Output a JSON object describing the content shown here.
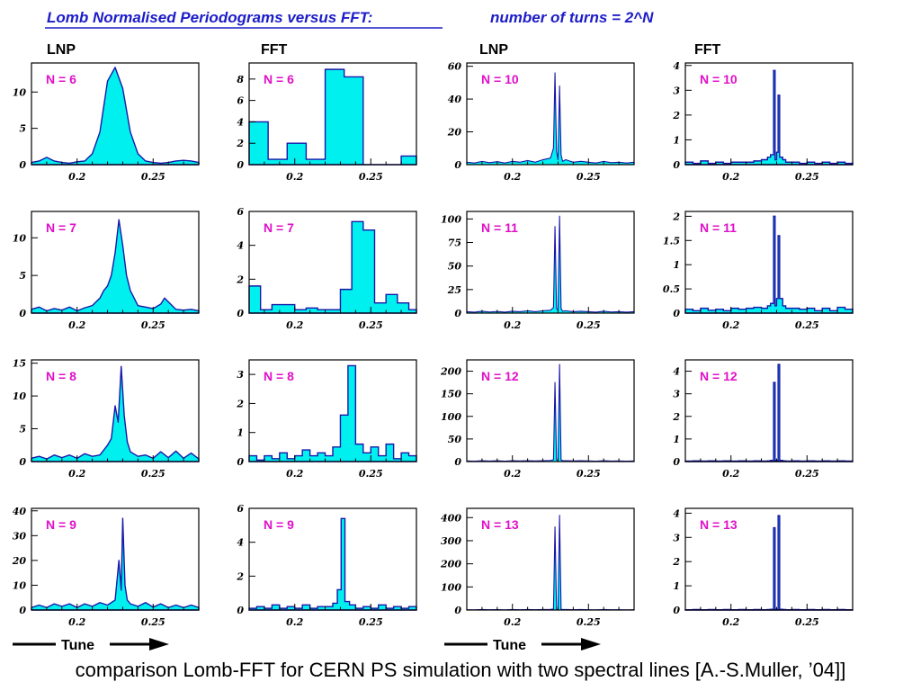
{
  "title": {
    "main": "Lomb Normalised Periodograms versus FFT:",
    "turns": "number of turns = 2^N"
  },
  "column_headers": [
    "LNP",
    "FFT",
    "LNP",
    "FFT"
  ],
  "tune_labels": [
    "Tune",
    "Tune"
  ],
  "caption": "comparison Lomb-FFT for CERN PS simulation with two spectral lines [A.-S.Muller, ’04]]",
  "colors": {
    "title": "#1c1cc8",
    "label": "#e010c8",
    "fill": "#00f0f0",
    "line": "#1818a8"
  },
  "chart_data": [
    {
      "type": "area",
      "method": "LNP",
      "label": "N = 6",
      "xlim": [
        0.17,
        0.28
      ],
      "ylim": [
        0,
        14
      ],
      "xticks": [
        "0.2",
        "0.25"
      ],
      "yticks": [
        "0",
        "5",
        "10"
      ],
      "x": [
        0.17,
        0.175,
        0.18,
        0.185,
        0.19,
        0.195,
        0.2,
        0.205,
        0.21,
        0.215,
        0.22,
        0.225,
        0.23,
        0.235,
        0.24,
        0.245,
        0.25,
        0.255,
        0.26,
        0.265,
        0.27,
        0.275,
        0.28
      ],
      "y": [
        0.3,
        0.5,
        1.0,
        0.5,
        0.3,
        0.2,
        0.4,
        0.5,
        1.5,
        4.5,
        11.5,
        13.4,
        10.5,
        4.5,
        1.5,
        0.5,
        0.3,
        0.2,
        0.3,
        0.5,
        0.6,
        0.5,
        0.3
      ]
    },
    {
      "type": "histogram",
      "method": "FFT",
      "label": "N = 6",
      "xlim": [
        0.17,
        0.28
      ],
      "ylim": [
        0,
        9.5
      ],
      "xticks": [
        "0.2",
        "0.25"
      ],
      "yticks": [
        "0",
        "2",
        "4",
        "6",
        "8"
      ],
      "x": [
        0.17,
        0.1825,
        0.195,
        0.2075,
        0.22,
        0.2325,
        0.245,
        0.2575,
        0.27
      ],
      "y": [
        4,
        0.5,
        2,
        0.5,
        8.9,
        8.2,
        0,
        0,
        0.8
      ]
    },
    {
      "type": "spikes",
      "method": "LNP",
      "label": "N = 10",
      "xlim": [
        0.17,
        0.28
      ],
      "ylim": [
        0,
        62
      ],
      "xticks": [
        "0.2",
        "0.25"
      ],
      "yticks": [
        "0",
        "20",
        "40",
        "60"
      ],
      "x": [
        0.17,
        0.175,
        0.18,
        0.185,
        0.19,
        0.195,
        0.2,
        0.205,
        0.21,
        0.215,
        0.22,
        0.225,
        0.227,
        0.228,
        0.229,
        0.23,
        0.231,
        0.232,
        0.233,
        0.235,
        0.24,
        0.245,
        0.25,
        0.255,
        0.26,
        0.265,
        0.27,
        0.275,
        0.28
      ],
      "y": [
        1.5,
        1.0,
        2.0,
        1.2,
        1.8,
        1.0,
        2.0,
        1.5,
        2.5,
        1.5,
        3.0,
        4.0,
        10,
        56,
        8,
        3,
        48,
        6,
        2,
        3,
        1.5,
        2.0,
        1.5,
        1.0,
        2.0,
        1.2,
        1.5,
        1.0,
        1.5
      ]
    },
    {
      "type": "histogram",
      "method": "FFT",
      "label": "N = 10",
      "xlim": [
        0.17,
        0.28
      ],
      "ylim": [
        0,
        4.1
      ],
      "xticks": [
        "0.2",
        "0.25"
      ],
      "yticks": [
        "0",
        "1",
        "2",
        "3",
        "4"
      ],
      "x": [
        0.17,
        0.175,
        0.18,
        0.185,
        0.19,
        0.195,
        0.2,
        0.205,
        0.21,
        0.215,
        0.22,
        0.224,
        0.226,
        0.228,
        0.229,
        0.23,
        0.231,
        0.232,
        0.234,
        0.236,
        0.24,
        0.245,
        0.25,
        0.255,
        0.26,
        0.265,
        0.27,
        0.275,
        0.28
      ],
      "y": [
        0.1,
        0.05,
        0.15,
        0.05,
        0.1,
        0.05,
        0.1,
        0.1,
        0.1,
        0.15,
        0.2,
        0.3,
        0.4,
        3.8,
        0.2,
        0.5,
        2.8,
        0.3,
        0.2,
        0.1,
        0.1,
        0.05,
        0.1,
        0.05,
        0.1,
        0.05,
        0.1,
        0.05,
        0.1
      ]
    },
    {
      "type": "area",
      "method": "LNP",
      "label": "N = 7",
      "xlim": [
        0.17,
        0.28
      ],
      "ylim": [
        0,
        13.5
      ],
      "xticks": [
        "0.2",
        "0.25"
      ],
      "yticks": [
        "0",
        "5",
        "10"
      ],
      "x": [
        0.17,
        0.175,
        0.18,
        0.185,
        0.19,
        0.195,
        0.2,
        0.205,
        0.21,
        0.215,
        0.2175,
        0.22,
        0.2225,
        0.225,
        0.2275,
        0.23,
        0.2325,
        0.235,
        0.2375,
        0.24,
        0.245,
        0.25,
        0.255,
        0.2575,
        0.26,
        0.265,
        0.27,
        0.275,
        0.28
      ],
      "y": [
        0.5,
        0.8,
        0.3,
        0.6,
        0.4,
        0.8,
        0.3,
        0.7,
        1.0,
        2.0,
        3.0,
        3.6,
        5,
        8,
        12.4,
        9,
        5,
        3,
        2,
        1.0,
        0.8,
        0.6,
        1.2,
        2.0,
        1.5,
        0.5,
        0.4,
        0.5,
        0.3
      ]
    },
    {
      "type": "histogram",
      "method": "FFT",
      "label": "N = 7",
      "xlim": [
        0.17,
        0.28
      ],
      "ylim": [
        0,
        6
      ],
      "xticks": [
        "0.2",
        "0.25"
      ],
      "yticks": [
        "0",
        "2",
        "4",
        "6"
      ],
      "x": [
        0.17,
        0.1775,
        0.185,
        0.1925,
        0.2,
        0.2075,
        0.215,
        0.2225,
        0.23,
        0.2375,
        0.245,
        0.2525,
        0.26,
        0.2675,
        0.275
      ],
      "y": [
        1.6,
        0.2,
        0.5,
        0.5,
        0.2,
        0.3,
        0.2,
        0.2,
        1.4,
        5.4,
        4.9,
        0.6,
        1.1,
        0.6,
        0.2
      ]
    },
    {
      "type": "spikes",
      "method": "LNP",
      "label": "N = 11",
      "xlim": [
        0.17,
        0.28
      ],
      "ylim": [
        0,
        108
      ],
      "xticks": [
        "0.2",
        "0.25"
      ],
      "yticks": [
        "0",
        "25",
        "50",
        "75",
        "100"
      ],
      "x": [
        0.17,
        0.175,
        0.18,
        0.185,
        0.19,
        0.195,
        0.2,
        0.205,
        0.21,
        0.215,
        0.22,
        0.225,
        0.227,
        0.228,
        0.229,
        0.23,
        0.231,
        0.232,
        0.233,
        0.235,
        0.24,
        0.245,
        0.25,
        0.255,
        0.26,
        0.265,
        0.27,
        0.275,
        0.28
      ],
      "y": [
        1.5,
        1.0,
        2.0,
        1.2,
        1.8,
        1.0,
        2.0,
        1.5,
        2.5,
        1.5,
        2.5,
        3.0,
        6,
        92,
        5,
        3,
        103,
        5,
        2,
        2.5,
        1.5,
        2.0,
        1.5,
        1.0,
        2.0,
        1.2,
        1.5,
        1.0,
        1.5
      ]
    },
    {
      "type": "histogram",
      "method": "FFT",
      "label": "N = 11",
      "xlim": [
        0.17,
        0.28
      ],
      "ylim": [
        0,
        2.1
      ],
      "xticks": [
        "0.2",
        "0.25"
      ],
      "yticks": [
        "0",
        "0.5",
        "1",
        "1.5",
        "2"
      ],
      "x": [
        0.17,
        0.175,
        0.18,
        0.185,
        0.19,
        0.195,
        0.2,
        0.205,
        0.21,
        0.215,
        0.22,
        0.224,
        0.226,
        0.228,
        0.229,
        0.23,
        0.231,
        0.232,
        0.234,
        0.236,
        0.24,
        0.245,
        0.25,
        0.255,
        0.26,
        0.265,
        0.27,
        0.275,
        0.28
      ],
      "y": [
        0.08,
        0.05,
        0.1,
        0.06,
        0.08,
        0.05,
        0.1,
        0.08,
        0.1,
        0.12,
        0.1,
        0.15,
        0.2,
        2.0,
        0.15,
        0.3,
        1.6,
        0.3,
        0.15,
        0.1,
        0.1,
        0.08,
        0.1,
        0.05,
        0.1,
        0.05,
        0.12,
        0.08,
        0.1
      ]
    },
    {
      "type": "area",
      "method": "LNP",
      "label": "N = 8",
      "xlim": [
        0.17,
        0.28
      ],
      "ylim": [
        0,
        15.5
      ],
      "xticks": [
        "0.2",
        "0.25"
      ],
      "yticks": [
        "0",
        "5",
        "10",
        "15"
      ],
      "x": [
        0.17,
        0.175,
        0.18,
        0.185,
        0.19,
        0.195,
        0.2,
        0.205,
        0.21,
        0.215,
        0.22,
        0.2225,
        0.225,
        0.227,
        0.229,
        0.231,
        0.233,
        0.235,
        0.24,
        0.245,
        0.25,
        0.255,
        0.26,
        0.265,
        0.27,
        0.275,
        0.28
      ],
      "y": [
        0.5,
        0.8,
        0.4,
        1.0,
        0.6,
        1.0,
        0.5,
        1.2,
        0.8,
        1.0,
        2.5,
        3.5,
        8.5,
        6,
        14.5,
        7,
        3,
        1.5,
        0.8,
        1.0,
        0.5,
        1.5,
        0.6,
        1.6,
        0.5,
        1.3,
        0.4
      ]
    },
    {
      "type": "histogram",
      "method": "FFT",
      "label": "N = 8",
      "xlim": [
        0.17,
        0.28
      ],
      "ylim": [
        0,
        3.5
      ],
      "xticks": [
        "0.2",
        "0.25"
      ],
      "yticks": [
        "0",
        "1",
        "2",
        "3"
      ],
      "x": [
        0.17,
        0.175,
        0.18,
        0.185,
        0.19,
        0.195,
        0.2,
        0.205,
        0.21,
        0.215,
        0.22,
        0.225,
        0.23,
        0.235,
        0.24,
        0.245,
        0.25,
        0.255,
        0.26,
        0.265,
        0.27,
        0.275
      ],
      "y": [
        0.2,
        0.05,
        0.2,
        0.1,
        0.3,
        0.1,
        0.2,
        0.4,
        0.2,
        0.3,
        0.2,
        0.5,
        1.6,
        3.3,
        0.6,
        0.3,
        0.5,
        0.2,
        0.6,
        0.1,
        0.3,
        0.2
      ]
    },
    {
      "type": "spikes",
      "method": "LNP",
      "label": "N = 12",
      "xlim": [
        0.17,
        0.28
      ],
      "ylim": [
        0,
        225
      ],
      "xticks": [
        "0.2",
        "0.25"
      ],
      "yticks": [
        "0",
        "50",
        "100",
        "150",
        "200"
      ],
      "x": [
        0.17,
        0.175,
        0.18,
        0.185,
        0.19,
        0.195,
        0.2,
        0.205,
        0.21,
        0.215,
        0.22,
        0.225,
        0.227,
        0.228,
        0.229,
        0.23,
        0.231,
        0.232,
        0.233,
        0.235,
        0.24,
        0.245,
        0.25,
        0.255,
        0.26,
        0.265,
        0.27,
        0.275,
        0.28
      ],
      "y": [
        1.5,
        1.0,
        2.0,
        1.2,
        1.8,
        1.0,
        2.0,
        1.5,
        2.0,
        1.5,
        2.0,
        2.5,
        4,
        175,
        4,
        2,
        215,
        4,
        2,
        2,
        1.5,
        2.0,
        1.5,
        1.0,
        2.0,
        1.2,
        1.5,
        1.0,
        1.5
      ]
    },
    {
      "type": "histogram",
      "method": "FFT",
      "label": "N = 12",
      "xlim": [
        0.17,
        0.28
      ],
      "ylim": [
        0,
        4.5
      ],
      "xticks": [
        "0.2",
        "0.25"
      ],
      "yticks": [
        "0",
        "1",
        "2",
        "3",
        "4"
      ],
      "x": [
        0.17,
        0.175,
        0.18,
        0.185,
        0.19,
        0.195,
        0.2,
        0.205,
        0.21,
        0.215,
        0.22,
        0.224,
        0.226,
        0.228,
        0.229,
        0.23,
        0.231,
        0.232,
        0.234,
        0.236,
        0.24,
        0.245,
        0.25,
        0.255,
        0.26,
        0.265,
        0.27,
        0.275,
        0.28
      ],
      "y": [
        0.02,
        0.03,
        0.02,
        0.03,
        0.02,
        0.03,
        0.02,
        0.03,
        0.02,
        0.03,
        0.02,
        0.03,
        0.05,
        3.5,
        0.05,
        0.05,
        4.3,
        0.05,
        0.03,
        0.02,
        0.03,
        0.02,
        0.03,
        0.02,
        0.03,
        0.02,
        0.03,
        0.02,
        0.03
      ]
    },
    {
      "type": "area",
      "method": "LNP",
      "label": "N = 9",
      "xlim": [
        0.17,
        0.28
      ],
      "ylim": [
        0,
        41
      ],
      "xticks": [
        "0.2",
        "0.25"
      ],
      "yticks": [
        "0",
        "10",
        "20",
        "30",
        "40"
      ],
      "x": [
        0.17,
        0.175,
        0.18,
        0.185,
        0.19,
        0.195,
        0.2,
        0.205,
        0.21,
        0.215,
        0.22,
        0.225,
        0.2275,
        0.229,
        0.23,
        0.2315,
        0.233,
        0.235,
        0.24,
        0.245,
        0.25,
        0.255,
        0.26,
        0.265,
        0.27,
        0.275,
        0.28
      ],
      "y": [
        1.0,
        2.0,
        1.0,
        2.5,
        1.5,
        2.5,
        1.0,
        2.5,
        1.5,
        3.0,
        2.0,
        4.0,
        20,
        8,
        37,
        10,
        4,
        2.5,
        1.5,
        3.0,
        1.2,
        2.5,
        1.0,
        2.0,
        1.0,
        2.0,
        1.0
      ]
    },
    {
      "type": "histogram",
      "method": "FFT",
      "label": "N = 9",
      "xlim": [
        0.17,
        0.28
      ],
      "ylim": [
        0,
        6
      ],
      "xticks": [
        "0.2",
        "0.25"
      ],
      "yticks": [
        "0",
        "2",
        "4",
        "6"
      ],
      "x": [
        0.17,
        0.175,
        0.18,
        0.185,
        0.19,
        0.195,
        0.2,
        0.205,
        0.21,
        0.215,
        0.22,
        0.225,
        0.228,
        0.2305,
        0.233,
        0.236,
        0.24,
        0.245,
        0.25,
        0.255,
        0.26,
        0.265,
        0.27,
        0.275
      ],
      "y": [
        0.1,
        0.2,
        0.1,
        0.3,
        0.1,
        0.2,
        0.1,
        0.3,
        0.1,
        0.2,
        0.2,
        0.4,
        1.2,
        5.4,
        0.5,
        0.3,
        0.1,
        0.2,
        0.1,
        0.3,
        0.1,
        0.2,
        0.1,
        0.2
      ]
    },
    {
      "type": "spikes",
      "method": "LNP",
      "label": "N = 13",
      "xlim": [
        0.17,
        0.28
      ],
      "ylim": [
        0,
        440
      ],
      "xticks": [
        "0.2",
        "0.25"
      ],
      "yticks": [
        "0",
        "100",
        "200",
        "300",
        "400"
      ],
      "x": [
        0.17,
        0.175,
        0.18,
        0.185,
        0.19,
        0.195,
        0.2,
        0.205,
        0.21,
        0.215,
        0.22,
        0.225,
        0.227,
        0.228,
        0.229,
        0.23,
        0.231,
        0.232,
        0.233,
        0.235,
        0.24,
        0.245,
        0.25,
        0.255,
        0.26,
        0.265,
        0.27,
        0.275,
        0.28
      ],
      "y": [
        1.5,
        1.0,
        2.0,
        1.2,
        1.8,
        1.0,
        2.0,
        1.5,
        2.0,
        1.5,
        2.0,
        2.5,
        4,
        360,
        4,
        2,
        410,
        4,
        2,
        2,
        1.5,
        2.0,
        1.5,
        1.0,
        2.0,
        1.2,
        1.5,
        1.0,
        1.5
      ]
    },
    {
      "type": "histogram",
      "method": "FFT",
      "label": "N = 13",
      "xlim": [
        0.17,
        0.28
      ],
      "ylim": [
        0,
        4.2
      ],
      "xticks": [
        "0.2",
        "0.25"
      ],
      "yticks": [
        "0",
        "1",
        "2",
        "3",
        "4"
      ],
      "x": [
        0.17,
        0.175,
        0.18,
        0.185,
        0.19,
        0.195,
        0.2,
        0.205,
        0.21,
        0.215,
        0.22,
        0.224,
        0.226,
        0.228,
        0.229,
        0.23,
        0.231,
        0.232,
        0.234,
        0.236,
        0.24,
        0.245,
        0.25,
        0.255,
        0.26,
        0.265,
        0.27,
        0.275,
        0.28
      ],
      "y": [
        0.01,
        0.02,
        0.01,
        0.02,
        0.01,
        0.02,
        0.01,
        0.02,
        0.01,
        0.02,
        0.01,
        0.02,
        0.03,
        3.4,
        0.03,
        0.03,
        3.9,
        0.03,
        0.02,
        0.01,
        0.02,
        0.01,
        0.02,
        0.01,
        0.02,
        0.01,
        0.02,
        0.01,
        0.02
      ]
    }
  ]
}
